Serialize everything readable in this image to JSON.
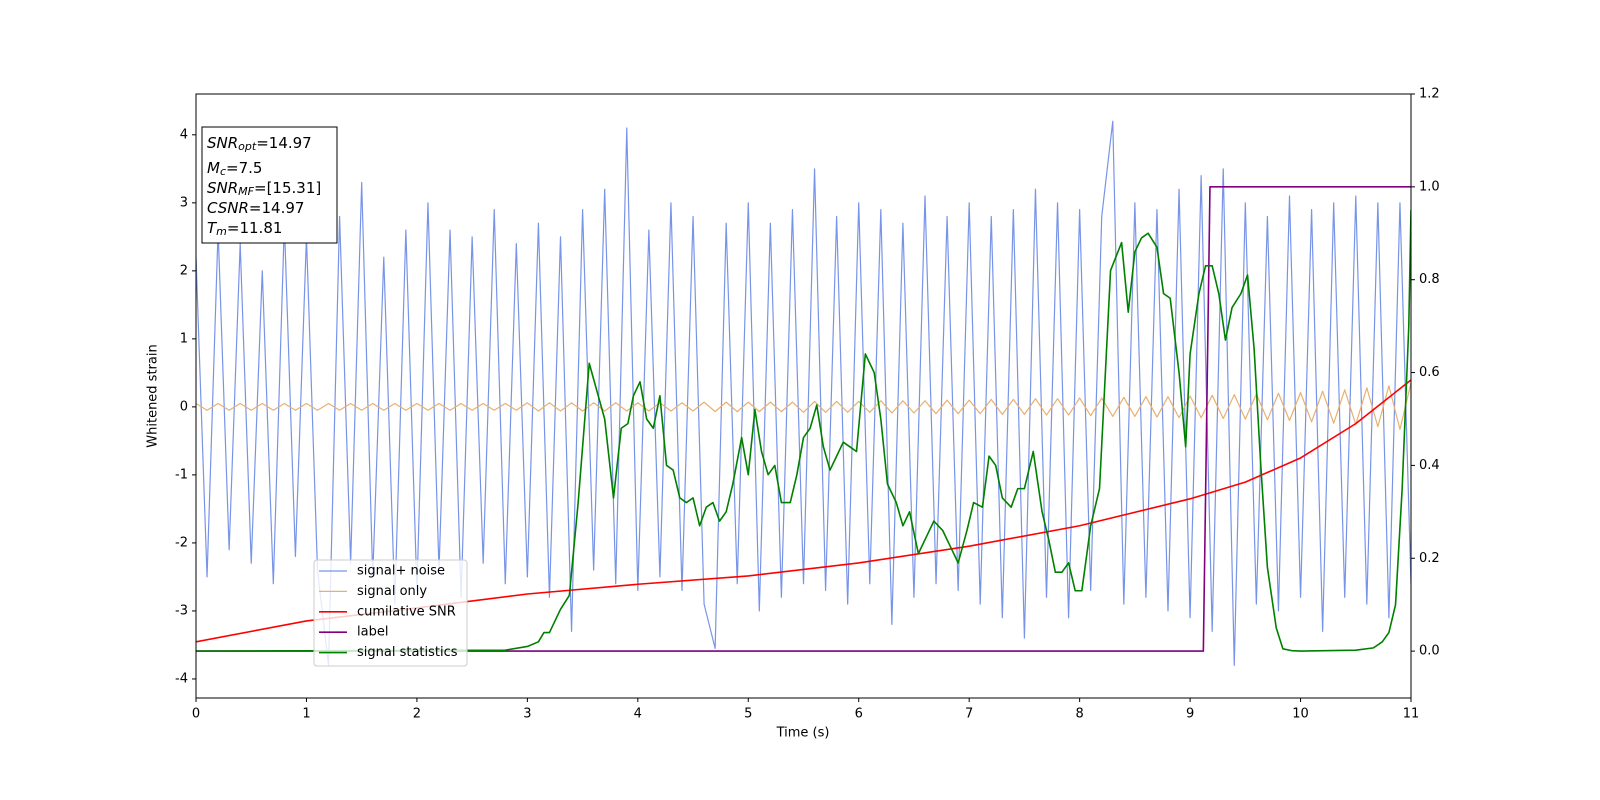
{
  "chart_data": {
    "type": "line",
    "xlabel": "Time (s)",
    "ylabel": "Whitened strain",
    "xlim": [
      0,
      11
    ],
    "ylim": [
      -4.28,
      4.6
    ],
    "y2lim": [
      -0.101,
      1.2
    ],
    "xticks": [
      0,
      1,
      2,
      3,
      4,
      5,
      6,
      7,
      8,
      9,
      10,
      11
    ],
    "yticks": [
      -4,
      -3,
      -2,
      -1,
      0,
      1,
      2,
      3,
      4
    ],
    "y2ticks": [
      {
        "value": 0,
        "label": "0.0"
      },
      {
        "value": 0.2,
        "label": "0.2"
      },
      {
        "value": 0.4,
        "label": "0.4"
      },
      {
        "value": 0.6,
        "label": "0.6"
      },
      {
        "value": 0.8,
        "label": "0.8"
      },
      {
        "value": 1.0,
        "label": "1.0"
      },
      {
        "value": 1.2,
        "label": "1.2"
      }
    ],
    "grid": false,
    "legend": "lower left",
    "annotations": [
      {
        "symbol": "SNR",
        "subscript": "opt",
        "text": "=14.97"
      },
      {
        "symbol": "M",
        "subscript": "c",
        "text": "=7.5"
      },
      {
        "symbol": "SNR",
        "subscript": "MF",
        "text": "=[15.31]"
      },
      {
        "symbol": "CSNR",
        "text": "=14.97"
      },
      {
        "symbol": "T",
        "subscript": "m",
        "text": "=11.81"
      }
    ],
    "x": [
      0,
      0.1,
      0.2,
      0.3,
      0.4,
      0.5,
      0.6,
      0.7,
      0.8,
      0.9,
      1,
      1.1,
      1.2,
      1.3,
      1.4,
      1.5,
      1.6,
      1.7,
      1.8,
      1.9,
      2,
      2.1,
      2.2,
      2.3,
      2.4,
      2.5,
      2.6,
      2.7,
      2.8,
      2.9,
      3,
      3.1,
      3.2,
      3.3,
      3.4,
      3.5,
      3.6,
      3.7,
      3.8,
      3.9,
      4,
      4.1,
      4.2,
      4.3,
      4.4,
      4.5,
      4.6,
      4.7,
      4.8,
      4.9,
      5,
      5.1,
      5.2,
      5.3,
      5.4,
      5.5,
      5.6,
      5.7,
      5.8,
      5.9,
      6,
      6.1,
      6.2,
      6.3,
      6.4,
      6.5,
      6.6,
      6.7,
      6.8,
      6.9,
      7,
      7.1,
      7.2,
      7.3,
      7.4,
      7.5,
      7.6,
      7.7,
      7.8,
      7.9,
      8,
      8.1,
      8.2,
      8.3,
      8.4,
      8.5,
      8.6,
      8.7,
      8.8,
      8.9,
      9,
      9.1,
      9.2,
      9.3,
      9.4,
      9.5,
      9.6,
      9.7,
      9.8,
      9.9,
      10,
      10.1,
      10.2,
      10.3,
      10.4,
      10.5,
      10.6,
      10.7,
      10.8,
      10.9,
      11
    ],
    "series": [
      {
        "name": "signal+ noise",
        "color": "#7894e8",
        "width": 1.2,
        "values": [
          2.2,
          -2.5,
          2.6,
          -2.1,
          2.4,
          -2.3,
          2.0,
          -2.6,
          2.7,
          -2.2,
          2.5,
          -2.4,
          -3.8,
          2.8,
          -2.3,
          3.3,
          -2.5,
          2.2,
          -2.9,
          2.6,
          -2.7,
          3.0,
          -2.4,
          2.6,
          -2.8,
          2.5,
          -2.3,
          2.9,
          -2.6,
          2.4,
          -2.5,
          2.7,
          -2.8,
          2.5,
          -3.3,
          2.9,
          -2.4,
          3.2,
          -2.6,
          4.1,
          -2.7,
          2.6,
          -2.5,
          3.0,
          -2.7,
          2.8,
          -2.9,
          -3.55,
          2.7,
          -2.6,
          3.0,
          -3.0,
          2.7,
          -2.8,
          2.9,
          -2.6,
          3.5,
          -2.7,
          2.8,
          -2.9,
          3.0,
          -2.6,
          2.9,
          -3.2,
          2.7,
          -2.8,
          3.1,
          -2.6,
          2.8,
          -2.7,
          3.0,
          -2.9,
          2.8,
          -3.1,
          2.9,
          -3.4,
          3.2,
          -2.8,
          3.0,
          -3.1,
          2.9,
          -2.7,
          2.8,
          4.2,
          -2.9,
          3.0,
          -2.8,
          2.9,
          -3.0,
          3.2,
          -3.1,
          3.4,
          -3.3,
          3.5,
          -3.8,
          3.0,
          -2.9,
          2.8,
          -3.0,
          3.1,
          -2.8,
          2.9,
          -3.3,
          3.0,
          -2.8,
          3.1,
          -2.9,
          3.0,
          -3.1,
          3.0,
          -2.6
        ]
      },
      {
        "name": "signal only",
        "color": "#e8b070",
        "width": 1.2,
        "values": [
          0.05,
          -0.05,
          0.05,
          -0.05,
          0.05,
          -0.05,
          0.05,
          -0.05,
          0.05,
          -0.05,
          0.05,
          -0.05,
          0.05,
          -0.05,
          0.05,
          -0.05,
          0.05,
          -0.05,
          0.05,
          -0.05,
          0.05,
          -0.05,
          0.05,
          -0.05,
          0.05,
          -0.05,
          0.05,
          -0.05,
          0.05,
          -0.05,
          0.06,
          -0.06,
          0.06,
          -0.06,
          0.06,
          -0.06,
          0.06,
          -0.06,
          0.06,
          -0.06,
          0.06,
          -0.06,
          0.06,
          -0.06,
          0.06,
          -0.06,
          0.07,
          -0.07,
          0.07,
          -0.07,
          0.07,
          -0.07,
          0.07,
          -0.07,
          0.07,
          -0.08,
          0.08,
          -0.08,
          0.08,
          -0.08,
          0.08,
          -0.08,
          0.09,
          -0.09,
          0.09,
          -0.09,
          0.09,
          -0.1,
          0.1,
          -0.1,
          0.1,
          -0.1,
          0.11,
          -0.11,
          0.11,
          -0.11,
          0.12,
          -0.12,
          0.12,
          -0.12,
          0.13,
          -0.13,
          0.13,
          -0.14,
          0.14,
          -0.14,
          0.15,
          -0.15,
          0.15,
          -0.16,
          0.16,
          -0.16,
          0.17,
          -0.17,
          0.18,
          -0.18,
          0.19,
          -0.19,
          0.2,
          -0.2,
          0.21,
          -0.22,
          0.23,
          -0.24,
          0.25,
          -0.26,
          0.28,
          -0.29,
          0.31,
          -0.33,
          0.35
        ]
      },
      {
        "name": "cumilative SNR",
        "color": "#ff0000",
        "width": 1.6,
        "axis": "y2",
        "x": [
          0,
          1,
          2,
          3,
          4,
          5,
          6,
          7,
          8,
          9,
          9.5,
          10,
          10.5,
          11
        ],
        "values": [
          0.02,
          0.065,
          0.093,
          0.123,
          0.144,
          0.162,
          0.19,
          0.226,
          0.27,
          0.328,
          0.364,
          0.416,
          0.49,
          0.584
        ]
      },
      {
        "name": "label",
        "color": "#800080",
        "width": 1.6,
        "axis": "y2",
        "x": [
          0,
          9.12,
          9.18,
          11
        ],
        "values": [
          0,
          0,
          1,
          1
        ]
      },
      {
        "name": "signal statistics",
        "color": "#008000",
        "width": 1.6,
        "axis": "y2",
        "x": [
          0,
          2.8,
          3.0,
          3.1,
          3.15,
          3.2,
          3.3,
          3.38,
          3.46,
          3.56,
          3.7,
          3.78,
          3.85,
          3.91,
          3.96,
          4.02,
          4.08,
          4.14,
          4.2,
          4.26,
          4.32,
          4.38,
          4.44,
          4.5,
          4.56,
          4.62,
          4.68,
          4.74,
          4.8,
          4.86,
          4.94,
          5.0,
          5.06,
          5.12,
          5.18,
          5.24,
          5.3,
          5.38,
          5.44,
          5.5,
          5.56,
          5.62,
          5.68,
          5.74,
          5.8,
          5.86,
          5.92,
          5.98,
          6.06,
          6.14,
          6.2,
          6.26,
          6.34,
          6.4,
          6.46,
          6.54,
          6.62,
          6.68,
          6.76,
          6.82,
          6.9,
          6.98,
          7.04,
          7.12,
          7.18,
          7.24,
          7.3,
          7.38,
          7.44,
          7.5,
          7.58,
          7.66,
          7.72,
          7.78,
          7.84,
          7.9,
          7.96,
          8.02,
          8.1,
          8.18,
          8.28,
          8.38,
          8.44,
          8.5,
          8.56,
          8.62,
          8.7,
          8.76,
          8.82,
          8.9,
          8.96,
          9.0,
          9.08,
          9.14,
          9.2,
          9.26,
          9.32,
          9.38,
          9.46,
          9.52,
          9.58,
          9.64,
          9.7,
          9.78,
          9.84,
          9.92,
          10.0,
          10.5,
          10.66,
          10.74,
          10.8,
          10.86,
          10.92,
          10.98,
          11.0
        ],
        "values": [
          0,
          0.002,
          0.01,
          0.02,
          0.04,
          0.04,
          0.09,
          0.12,
          0.32,
          0.62,
          0.5,
          0.33,
          0.48,
          0.49,
          0.55,
          0.58,
          0.5,
          0.48,
          0.55,
          0.4,
          0.39,
          0.33,
          0.32,
          0.33,
          0.27,
          0.31,
          0.32,
          0.28,
          0.3,
          0.36,
          0.46,
          0.38,
          0.52,
          0.43,
          0.38,
          0.4,
          0.32,
          0.32,
          0.38,
          0.46,
          0.48,
          0.53,
          0.44,
          0.39,
          0.42,
          0.45,
          0.44,
          0.43,
          0.64,
          0.6,
          0.5,
          0.36,
          0.32,
          0.27,
          0.3,
          0.21,
          0.25,
          0.28,
          0.26,
          0.23,
          0.19,
          0.26,
          0.32,
          0.31,
          0.42,
          0.4,
          0.33,
          0.31,
          0.35,
          0.35,
          0.43,
          0.3,
          0.24,
          0.17,
          0.17,
          0.19,
          0.13,
          0.13,
          0.27,
          0.35,
          0.82,
          0.88,
          0.73,
          0.86,
          0.89,
          0.9,
          0.87,
          0.77,
          0.76,
          0.6,
          0.44,
          0.64,
          0.77,
          0.83,
          0.83,
          0.77,
          0.67,
          0.74,
          0.77,
          0.81,
          0.65,
          0.4,
          0.18,
          0.05,
          0.005,
          0.001,
          0,
          0.002,
          0.007,
          0.02,
          0.04,
          0.1,
          0.35,
          0.7,
          0.95
        ]
      }
    ]
  }
}
